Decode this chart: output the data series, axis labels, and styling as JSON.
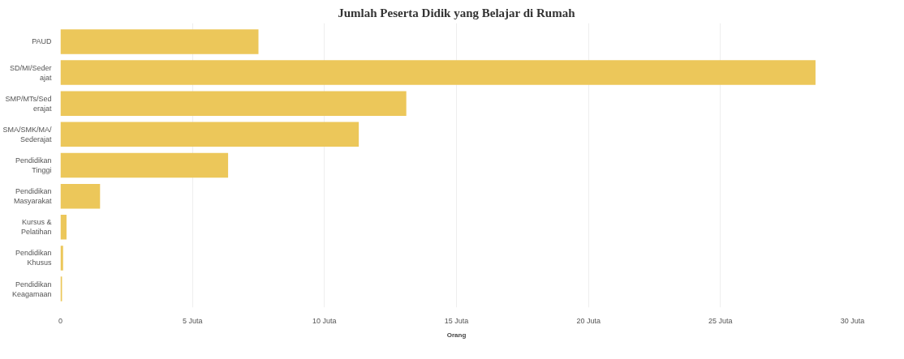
{
  "chart_data": {
    "type": "bar",
    "orientation": "horizontal",
    "title": "Jumlah Peserta Didik yang Belajar di Rumah",
    "xlabel": "Orang",
    "categories": [
      "PAUD",
      "SD/MI/Sederajat",
      "SMP/MTs/Sederajat",
      "SMA/SMK/MA/Sederajat",
      "Pendidikan Tinggi",
      "Pendidikan Masyarakat",
      "Kursus & Pelatihan",
      "Pendidikan Khusus",
      "Pendidikan Keagamaan"
    ],
    "values": [
      7.5,
      28.6,
      13.1,
      11.3,
      6.35,
      1.5,
      0.23,
      0.1,
      0.06
    ],
    "color": "#ecc75a",
    "xlim": [
      0,
      30
    ],
    "xticks": [
      0,
      {
        "value": 5,
        "label": "5 Juta"
      },
      {
        "value": 10,
        "label": "10 Juta"
      },
      {
        "value": 15,
        "label": "15 Juta"
      },
      {
        "value": 20,
        "label": "20 Juta"
      },
      {
        "value": 25,
        "label": "25 Juta"
      },
      {
        "value": 30,
        "label": "30 Juta"
      }
    ],
    "grid": "x"
  }
}
